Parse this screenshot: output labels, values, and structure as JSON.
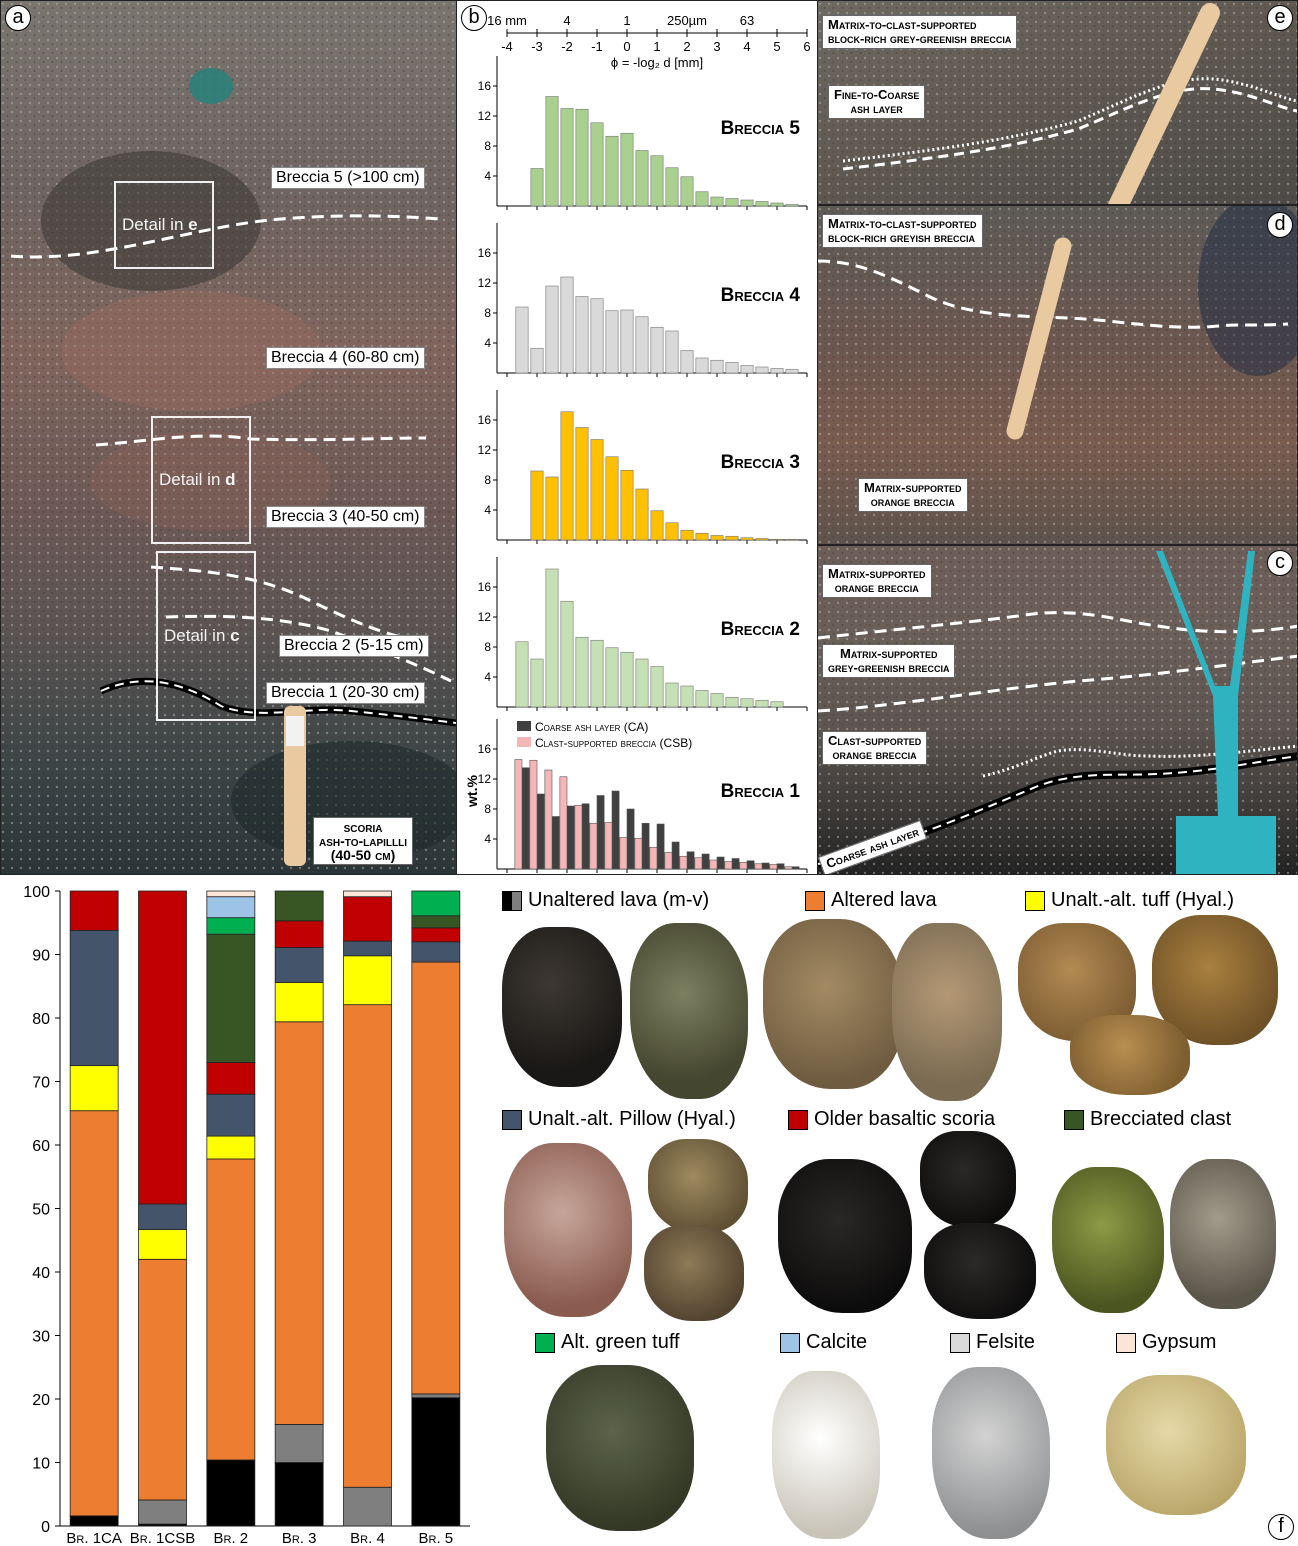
{
  "panels": {
    "a": {
      "letter": "a",
      "units": [
        "Breccia 5 (>100 cm)",
        "Breccia 4 (60-80 cm)",
        "Breccia 3 (40-50 cm)",
        "Breccia 2 (5-15 cm)",
        "Breccia 1 (20-30 cm)"
      ],
      "details": [
        "Detail in ",
        "Detail in ",
        "Detail in "
      ],
      "detail_refs": [
        "e",
        "d",
        "c"
      ],
      "scoria": "scoria\nash-to-lapillli\n(40-50 cm)"
    },
    "b": {
      "letter": "b",
      "top_axis_labels": [
        "16 mm",
        "4",
        "1",
        "250µm",
        "63"
      ],
      "phi_ticks": [
        "-4",
        "-3",
        "-2",
        "-1",
        "0",
        "1",
        "2",
        "3",
        "4",
        "5",
        "6"
      ],
      "phi_label": "ϕ = -log₂ d [mm]",
      "ylabel": "wt.%",
      "legend_ca": "Coarse ash layer (CA)",
      "legend_csb": "Clast-supported breccia (CSB)"
    },
    "e": {
      "letter": "e",
      "caption1": "Matrix-to-clast-supported\nblock-rich grey-greenish breccia",
      "caption2": "Fine-to-Coarse\nash layer"
    },
    "d": {
      "letter": "d",
      "caption1": "Matrix-to-clast-supported\nblock-rich greyish breccia",
      "caption2": "Matrix-supported\norange breccia"
    },
    "c": {
      "letter": "c",
      "caption1": "Matrix-supported\norange breccia",
      "caption2": "Matrix-supported\ngrey-greenish breccia",
      "caption3": "Clast-supported\norange breccia",
      "caption4": "Coarse ash layer"
    },
    "f": {
      "letter": "f"
    }
  },
  "chart_data": [
    {
      "type": "bar",
      "title": "Breccia 5",
      "ylim": [
        0,
        20
      ],
      "yticks": [
        4,
        8,
        12,
        16
      ],
      "color": "#a9d08e",
      "x": [
        -3.5,
        -3,
        -2.5,
        -2,
        -1.5,
        -1,
        -0.5,
        0,
        0.5,
        1,
        1.5,
        2,
        2.5,
        3,
        3.5,
        4,
        4.5,
        5,
        5.5
      ],
      "values": [
        0,
        5,
        14.6,
        13,
        12.9,
        11.1,
        9.3,
        9.7,
        7.4,
        6.7,
        5.1,
        3.9,
        1.9,
        1.2,
        1.0,
        0.8,
        0.6,
        0.4,
        0.2
      ]
    },
    {
      "type": "bar",
      "title": "Breccia 4",
      "ylim": [
        0,
        20
      ],
      "yticks": [
        4,
        8,
        12,
        16
      ],
      "color": "#d9d9d9",
      "x": [
        -3.5,
        -3,
        -2.5,
        -2,
        -1.5,
        -1,
        -0.5,
        0,
        0.5,
        1,
        1.5,
        2,
        2.5,
        3,
        3.5,
        4,
        4.5,
        5,
        5.5
      ],
      "values": [
        8.8,
        3.3,
        11.6,
        12.8,
        10.2,
        9.9,
        8.3,
        8.4,
        7.5,
        6.1,
        5.6,
        3.0,
        2.0,
        1.7,
        1.4,
        1.0,
        0.8,
        0.6,
        0.5
      ]
    },
    {
      "type": "bar",
      "title": "Breccia 3",
      "ylim": [
        0,
        20
      ],
      "yticks": [
        4,
        8,
        12,
        16
      ],
      "color": "#ffc000",
      "x": [
        -3.5,
        -3,
        -2.5,
        -2,
        -1.5,
        -1,
        -0.5,
        0,
        0.5,
        1,
        1.5,
        2,
        2.5,
        3,
        3.5,
        4,
        4.5,
        5,
        5.5
      ],
      "values": [
        0,
        9.2,
        8.4,
        17.1,
        15.0,
        13.4,
        11.1,
        9.3,
        6.8,
        3.9,
        2.3,
        1.3,
        0.9,
        0.6,
        0.5,
        0.3,
        0.2,
        0.1,
        0.1
      ]
    },
    {
      "type": "bar",
      "title": "Breccia 2",
      "ylim": [
        0,
        20
      ],
      "yticks": [
        4,
        8,
        12,
        16
      ],
      "color": "#c5e0b4",
      "x": [
        -3.5,
        -3,
        -2.5,
        -2,
        -1.5,
        -1,
        -0.5,
        0,
        0.5,
        1,
        1.5,
        2,
        2.5,
        3,
        3.5,
        4,
        4.5,
        5,
        5.5
      ],
      "values": [
        8.7,
        6.4,
        18.4,
        14.1,
        9.3,
        8.9,
        7.9,
        7.3,
        6.4,
        5.4,
        3.2,
        2.8,
        2.2,
        1.8,
        1.3,
        1.1,
        0.9,
        0.7,
        0
      ]
    },
    {
      "type": "bar",
      "title": "Breccia 1",
      "ylim": [
        0,
        20
      ],
      "yticks": [
        4,
        8,
        12,
        16
      ],
      "x": [
        -3.5,
        -3,
        -2.5,
        -2,
        -1.5,
        -1,
        -0.5,
        0,
        0.5,
        1,
        1.5,
        2,
        2.5,
        3,
        3.5,
        4,
        4.5,
        5,
        5.5
      ],
      "series": [
        {
          "name": "Coarse ash layer (CA)",
          "color": "#404040",
          "values": [
            13.5,
            10.0,
            7.0,
            8.4,
            8.7,
            9.8,
            10.4,
            8.0,
            6.1,
            6.0,
            3.6,
            2.3,
            2.0,
            1.6,
            1.4,
            1.1,
            0.8,
            0.7,
            0.3
          ]
        },
        {
          "name": "Clast-supported breccia (CSB)",
          "color": "#f4b6b6",
          "values": [
            14.6,
            14.5,
            13.2,
            12.3,
            8.5,
            6.1,
            6.2,
            4.2,
            4.1,
            2.9,
            2.2,
            1.7,
            1.5,
            1.2,
            1.0,
            0.9,
            0.7,
            0.6,
            0.3
          ]
        }
      ]
    },
    {
      "type": "bar",
      "stacked": true,
      "ylim": [
        0,
        100
      ],
      "yticks": [
        0,
        10,
        20,
        30,
        40,
        50,
        60,
        70,
        80,
        90,
        100
      ],
      "categories": [
        "Br. 1CA",
        "Br. 1CSB",
        "Br. 2",
        "Br. 3",
        "Br. 4",
        "Br. 5"
      ],
      "series": [
        {
          "name": "Unaltered lava (m-v)",
          "color": "#000000",
          "values": [
            1.6,
            0.3,
            10.4,
            10.0,
            0,
            20.2
          ]
        },
        {
          "name": "Felsite",
          "color": "#7f7f7f",
          "values": [
            0,
            3.8,
            0,
            6.0,
            6.1,
            0.6
          ]
        },
        {
          "name": "Altered lava",
          "color": "#ed7d31",
          "values": [
            63.8,
            37.9,
            47.4,
            63.4,
            76.0,
            68.0
          ]
        },
        {
          "name": "Unalt.-alt. tuff (Hyal.)",
          "color": "#ffff00",
          "values": [
            7.1,
            4.7,
            3.6,
            6.2,
            7.7,
            0
          ]
        },
        {
          "name": "Unalt.-alt. Pillow (Hyal.)",
          "color": "#44546a",
          "values": [
            21.3,
            4.0,
            6.6,
            5.5,
            2.3,
            3.2
          ]
        },
        {
          "name": "Older basaltic scoria",
          "color": "#c00000",
          "values": [
            6.2,
            49.3,
            5.0,
            4.2,
            7.0,
            2.2
          ]
        },
        {
          "name": "Brecciated clast",
          "color": "#375623",
          "values": [
            0,
            0,
            20.2,
            4.7,
            0,
            1.9
          ]
        },
        {
          "name": "Alt. green tuff",
          "color": "#00b050",
          "values": [
            0,
            0,
            2.6,
            0,
            0,
            3.9
          ]
        },
        {
          "name": "Calcite",
          "color": "#9dc3e6",
          "values": [
            0,
            0,
            3.3,
            0,
            0,
            0
          ]
        },
        {
          "name": "Gypsum",
          "color": "#fbe5d6",
          "values": [
            0,
            0,
            0.9,
            0,
            0.9,
            0
          ]
        }
      ]
    }
  ],
  "legend_f": [
    {
      "label": "Unaltered lava (m-v)",
      "color": "#000000",
      "color2": "#7f7f7f"
    },
    {
      "label": "Altered lava",
      "color": "#ed7d31"
    },
    {
      "label": "Unalt.-alt. tuff (Hyal.)",
      "color": "#ffff00"
    },
    {
      "label": "Unalt.-alt. Pillow (Hyal.)",
      "color": "#44546a"
    },
    {
      "label": "Older basaltic scoria",
      "color": "#c00000"
    },
    {
      "label": "Brecciated clast",
      "color": "#375623"
    },
    {
      "label": "Alt. green tuff",
      "color": "#00b050"
    },
    {
      "label": "Calcite",
      "color": "#9dc3e6"
    },
    {
      "label": "Felsite",
      "color": "#d9d9d9"
    },
    {
      "label": "Gypsum",
      "color": "#fbe5d6"
    }
  ]
}
